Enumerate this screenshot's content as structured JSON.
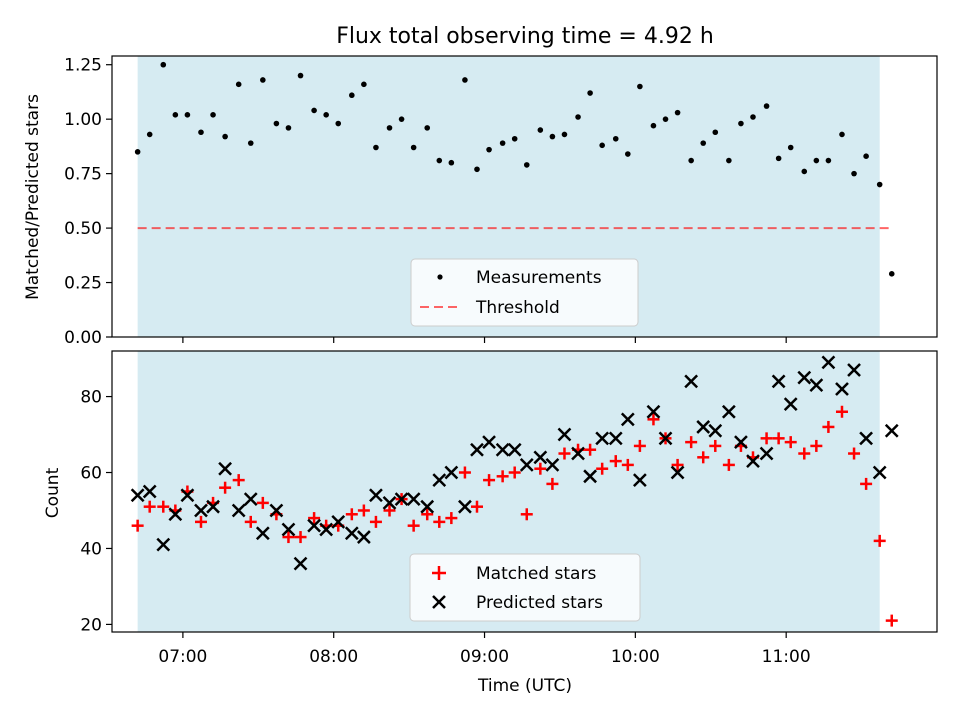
{
  "title": "Flux total observing time = 4.92 h",
  "colors": {
    "shade": "#add8e6",
    "threshold": "#ff0000",
    "measurement": "#000000",
    "matched": "#ff0000",
    "predicted": "#000000"
  },
  "chart_data": [
    {
      "type": "scatter",
      "ylabel": "Matched/Predicted stars",
      "xlim": [
        6.53,
        12.0
      ],
      "ylim": [
        0.0,
        1.29
      ],
      "yticks": [
        "0.00",
        "0.25",
        "0.50",
        "0.75",
        "1.00",
        "1.25"
      ],
      "ytick_values": [
        0.0,
        0.25,
        0.5,
        0.75,
        1.0,
        1.25
      ],
      "shaded_span": [
        6.7,
        11.62
      ],
      "threshold": {
        "name": "Threshold",
        "value": 0.5,
        "x_range": [
          6.7,
          11.7
        ],
        "style": "dashed"
      },
      "legend": {
        "placement": "lower-center",
        "entries": [
          "Measurements",
          "Threshold"
        ]
      },
      "series": [
        {
          "name": "Measurements",
          "x": [
            6.7,
            6.78,
            6.87,
            6.95,
            7.03,
            7.12,
            7.2,
            7.28,
            7.37,
            7.45,
            7.53,
            7.62,
            7.7,
            7.78,
            7.87,
            7.95,
            8.03,
            8.12,
            8.2,
            8.28,
            8.37,
            8.45,
            8.53,
            8.62,
            8.7,
            8.78,
            8.87,
            8.95,
            9.03,
            9.12,
            9.2,
            9.28,
            9.37,
            9.45,
            9.53,
            9.62,
            9.7,
            9.78,
            9.87,
            9.95,
            10.03,
            10.12,
            10.2,
            10.28,
            10.37,
            10.45,
            10.53,
            10.62,
            10.7,
            10.78,
            10.87,
            10.95,
            11.03,
            11.12,
            11.2,
            11.28,
            11.37,
            11.45,
            11.53,
            11.62,
            11.7
          ],
          "y": [
            0.85,
            0.93,
            1.25,
            1.02,
            1.02,
            0.94,
            1.02,
            0.92,
            1.16,
            0.89,
            1.18,
            0.98,
            0.96,
            1.2,
            1.04,
            1.02,
            0.98,
            1.11,
            1.16,
            0.87,
            0.96,
            1.0,
            0.87,
            0.96,
            0.81,
            0.8,
            1.18,
            0.77,
            0.86,
            0.89,
            0.91,
            0.79,
            0.95,
            0.92,
            0.93,
            1.01,
            1.12,
            0.88,
            0.91,
            0.84,
            1.15,
            0.97,
            1.0,
            1.03,
            0.81,
            0.89,
            0.94,
            0.81,
            0.98,
            1.01,
            1.06,
            0.82,
            0.87,
            0.76,
            0.81,
            0.81,
            0.93,
            0.75,
            0.83,
            0.7,
            0.29
          ]
        }
      ]
    },
    {
      "type": "scatter",
      "ylabel": "Count",
      "xlabel": "Time (UTC)",
      "xlim": [
        6.53,
        12.0
      ],
      "ylim": [
        18,
        92
      ],
      "yticks": [
        "20",
        "40",
        "60",
        "80"
      ],
      "ytick_values": [
        20,
        40,
        60,
        80
      ],
      "xticks": [
        "07:00",
        "08:00",
        "09:00",
        "10:00",
        "11:00"
      ],
      "xtick_values": [
        7,
        8,
        9,
        10,
        11
      ],
      "shaded_span": [
        6.7,
        11.62
      ],
      "legend": {
        "placement": "lower-center",
        "entries": [
          "Matched stars",
          "Predicted stars"
        ]
      },
      "x": [
        6.7,
        6.78,
        6.87,
        6.95,
        7.03,
        7.12,
        7.2,
        7.28,
        7.37,
        7.45,
        7.53,
        7.62,
        7.7,
        7.78,
        7.87,
        7.95,
        8.03,
        8.12,
        8.2,
        8.28,
        8.37,
        8.45,
        8.53,
        8.62,
        8.7,
        8.78,
        8.87,
        8.95,
        9.03,
        9.12,
        9.2,
        9.28,
        9.37,
        9.45,
        9.53,
        9.62,
        9.7,
        9.78,
        9.87,
        9.95,
        10.03,
        10.12,
        10.2,
        10.28,
        10.37,
        10.45,
        10.53,
        10.62,
        10.7,
        10.78,
        10.87,
        10.95,
        11.03,
        11.12,
        11.2,
        11.28,
        11.37,
        11.45,
        11.53,
        11.62,
        11.7
      ],
      "series": [
        {
          "name": "Matched stars",
          "marker": "+",
          "values": [
            46,
            51,
            51,
            50,
            55,
            47,
            52,
            56,
            58,
            47,
            52,
            49,
            43,
            43,
            48,
            46,
            46,
            49,
            50,
            47,
            50,
            53,
            46,
            49,
            47,
            48,
            60,
            51,
            58,
            59,
            60,
            49,
            61,
            57,
            65,
            66,
            66,
            61,
            63,
            62,
            67,
            74,
            69,
            62,
            68,
            64,
            67,
            62,
            67,
            64,
            69,
            69,
            68,
            65,
            67,
            72,
            76,
            65,
            57,
            42,
            21
          ]
        },
        {
          "name": "Predicted stars",
          "marker": "x",
          "values": [
            54,
            55,
            41,
            49,
            54,
            50,
            51,
            61,
            50,
            53,
            44,
            50,
            45,
            36,
            46,
            45,
            47,
            44,
            43,
            54,
            52,
            53,
            53,
            51,
            58,
            60,
            51,
            66,
            68,
            66,
            66,
            62,
            64,
            62,
            70,
            65,
            59,
            69,
            69,
            74,
            58,
            76,
            69,
            60,
            84,
            72,
            71,
            76,
            68,
            63,
            65,
            84,
            78,
            85,
            83,
            89,
            82,
            87,
            69,
            60,
            71
          ]
        }
      ]
    }
  ]
}
